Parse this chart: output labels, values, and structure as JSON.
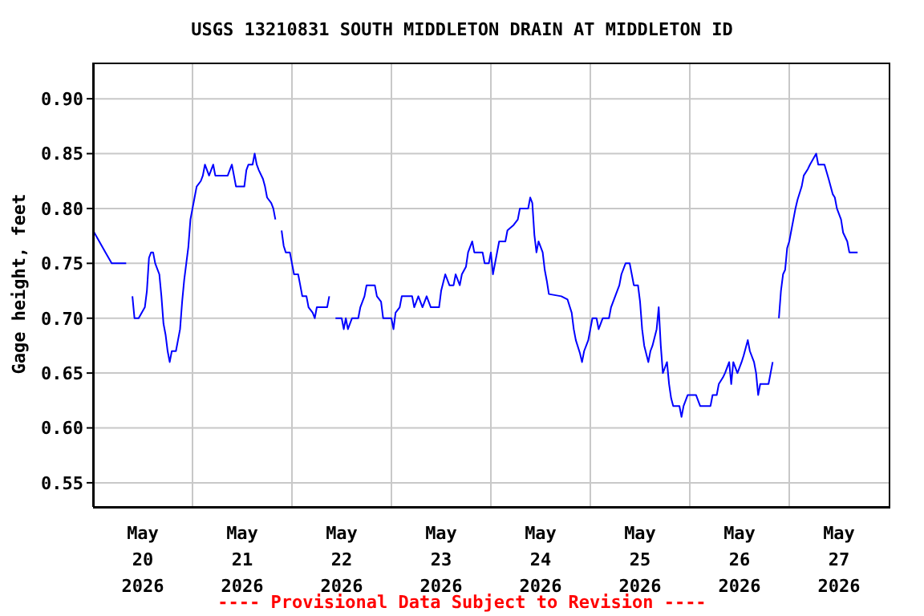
{
  "chart_data": {
    "type": "line",
    "title": "USGS 13210831 SOUTH MIDDLETON DRAIN AT MIDDLETON ID",
    "ylabel": "Gage height, feet",
    "annotations": [
      "---- Provisional Data Subject to Revision ----"
    ],
    "xlim": [
      "2026-05-20T00:00",
      "2026-05-28T00:00"
    ],
    "xticks": [
      {
        "value": "2026-05-20T12:00",
        "label": "May\n20\n2026"
      },
      {
        "value": "2026-05-21T00:00",
        "label": null
      },
      {
        "value": "2026-05-21T12:00",
        "label": "May\n21\n2026"
      },
      {
        "value": "2026-05-22T00:00",
        "label": null
      },
      {
        "value": "2026-05-22T12:00",
        "label": "May\n22\n2026"
      },
      {
        "value": "2026-05-23T00:00",
        "label": null
      },
      {
        "value": "2026-05-23T12:00",
        "label": "May\n23\n2026"
      },
      {
        "value": "2026-05-24T00:00",
        "label": null
      },
      {
        "value": "2026-05-24T12:00",
        "label": "May\n24\n2026"
      },
      {
        "value": "2026-05-25T00:00",
        "label": null
      },
      {
        "value": "2026-05-25T12:00",
        "label": "May\n25\n2026"
      },
      {
        "value": "2026-05-26T00:00",
        "label": null
      },
      {
        "value": "2026-05-26T12:00",
        "label": "May\n26\n2026"
      },
      {
        "value": "2026-05-27T00:00",
        "label": null
      },
      {
        "value": "2026-05-27T12:00",
        "label": "May\n27\n2026"
      }
    ],
    "ylim": [
      0.528,
      0.933
    ],
    "yticks": [
      {
        "value": 0.55,
        "label": "0.55"
      },
      {
        "value": 0.6,
        "label": "0.60"
      },
      {
        "value": 0.65,
        "label": "0.65"
      },
      {
        "value": 0.7,
        "label": "0.70"
      },
      {
        "value": 0.75,
        "label": "0.75"
      },
      {
        "value": 0.8,
        "label": "0.80"
      },
      {
        "value": 0.85,
        "label": "0.85"
      },
      {
        "value": 0.9,
        "label": "0.90"
      }
    ],
    "grid": true,
    "marker": "none",
    "line_style": "solid",
    "series": [
      {
        "color": "#0000ff",
        "x": [
          "2026-05-20T00:00",
          "2026-05-20T01:30",
          "2026-05-20T03:00",
          "2026-05-20T04:30",
          "2026-05-20T08:00",
          "2026-05-20T09:00",
          "2026-05-20T09:30",
          "2026-05-20T10:00",
          "2026-05-20T11:00",
          "2026-05-20T12:30",
          "2026-05-20T13:00",
          "2026-05-20T13:30",
          "2026-05-20T14:00",
          "2026-05-20T14:30",
          "2026-05-20T15:00",
          "2026-05-20T16:00",
          "2026-05-20T16:30",
          "2026-05-20T17:00",
          "2026-05-20T17:30",
          "2026-05-20T18:00",
          "2026-05-20T18:30",
          "2026-05-20T19:00",
          "2026-05-20T20:00",
          "2026-05-20T20:30",
          "2026-05-20T21:00",
          "2026-05-20T21:30",
          "2026-05-20T22:00",
          "2026-05-20T22:30",
          "2026-05-20T23:00",
          "2026-05-20T23:30",
          "2026-05-21T00:00",
          "2026-05-21T00:30",
          "2026-05-21T01:00",
          "2026-05-21T02:00",
          "2026-05-21T02:30",
          "2026-05-21T03:00",
          "2026-05-21T04:00",
          "2026-05-21T05:00",
          "2026-05-21T05:30",
          "2026-05-21T08:30",
          "2026-05-21T09:30",
          "2026-05-21T10:00",
          "2026-05-21T10:30",
          "2026-05-21T12:30",
          "2026-05-21T13:00",
          "2026-05-21T13:30",
          "2026-05-21T14:30",
          "2026-05-21T15:00",
          "2026-05-21T15:30",
          "2026-05-21T16:00",
          "2026-05-21T17:00",
          "2026-05-21T17:30",
          "2026-05-21T18:00",
          "2026-05-21T19:00",
          "2026-05-21T19:30",
          "2026-05-21T20:00",
          "2026-05-21T21:00",
          "2026-05-21T21:30",
          "2026-05-21T22:00",
          "2026-05-21T22:30",
          "2026-05-21T23:30",
          "2026-05-22T00:00",
          "2026-05-22T00:30",
          "2026-05-22T01:30",
          "2026-05-22T02:00",
          "2026-05-22T02:30",
          "2026-05-22T03:30",
          "2026-05-22T04:00",
          "2026-05-22T05:00",
          "2026-05-22T05:30",
          "2026-05-22T06:00",
          "2026-05-22T08:30",
          "2026-05-22T09:00",
          "2026-05-22T10:00",
          "2026-05-22T10:30",
          "2026-05-22T12:00",
          "2026-05-22T12:30",
          "2026-05-22T13:00",
          "2026-05-22T13:30",
          "2026-05-22T14:30",
          "2026-05-22T16:00",
          "2026-05-22T16:30",
          "2026-05-22T17:30",
          "2026-05-22T18:00",
          "2026-05-22T20:00",
          "2026-05-22T20:30",
          "2026-05-22T21:30",
          "2026-05-22T22:00",
          "2026-05-23T00:00",
          "2026-05-23T00:30",
          "2026-05-23T01:00",
          "2026-05-23T02:00",
          "2026-05-23T02:30",
          "2026-05-23T05:00",
          "2026-05-23T05:30",
          "2026-05-23T06:30",
          "2026-05-23T07:30",
          "2026-05-23T08:30",
          "2026-05-23T09:30",
          "2026-05-23T11:30",
          "2026-05-23T12:00",
          "2026-05-23T13:00",
          "2026-05-23T14:00",
          "2026-05-23T15:00",
          "2026-05-23T15:30",
          "2026-05-23T16:30",
          "2026-05-23T17:00",
          "2026-05-23T18:00",
          "2026-05-23T18:30",
          "2026-05-23T19:30",
          "2026-05-23T20:00",
          "2026-05-23T22:00",
          "2026-05-23T22:30",
          "2026-05-23T23:30",
          "2026-05-24T00:00",
          "2026-05-24T00:30",
          "2026-05-24T01:00",
          "2026-05-24T01:30",
          "2026-05-24T02:00",
          "2026-05-24T03:30",
          "2026-05-24T04:00",
          "2026-05-24T05:30",
          "2026-05-24T06:30",
          "2026-05-24T07:00",
          "2026-05-24T09:00",
          "2026-05-24T09:30",
          "2026-05-24T10:00",
          "2026-05-24T10:30",
          "2026-05-24T11:00",
          "2026-05-24T11:30",
          "2026-05-24T12:30",
          "2026-05-24T13:00",
          "2026-05-24T13:30",
          "2026-05-24T14:00",
          "2026-05-24T17:00",
          "2026-05-24T18:30",
          "2026-05-24T19:30",
          "2026-05-24T20:00",
          "2026-05-24T20:30",
          "2026-05-24T21:30",
          "2026-05-24T22:00",
          "2026-05-24T22:30",
          "2026-05-24T23:30",
          "2026-05-25T00:00",
          "2026-05-25T00:30",
          "2026-05-25T01:30",
          "2026-05-25T02:00",
          "2026-05-25T03:00",
          "2026-05-25T04:30",
          "2026-05-25T05:00",
          "2026-05-25T06:00",
          "2026-05-25T07:00",
          "2026-05-25T07:30",
          "2026-05-25T08:30",
          "2026-05-25T09:30",
          "2026-05-25T10:00",
          "2026-05-25T10:30",
          "2026-05-25T11:30",
          "2026-05-25T12:00",
          "2026-05-25T12:30",
          "2026-05-25T13:00",
          "2026-05-25T14:00",
          "2026-05-25T14:30",
          "2026-05-25T15:00",
          "2026-05-25T16:00",
          "2026-05-25T16:30",
          "2026-05-25T17:00",
          "2026-05-25T17:30",
          "2026-05-25T18:30",
          "2026-05-25T19:00",
          "2026-05-25T19:30",
          "2026-05-25T20:00",
          "2026-05-25T21:30",
          "2026-05-25T22:00",
          "2026-05-25T22:30",
          "2026-05-25T23:30",
          "2026-05-26T01:30",
          "2026-05-26T02:30",
          "2026-05-26T05:00",
          "2026-05-26T05:30",
          "2026-05-26T06:30",
          "2026-05-26T07:00",
          "2026-05-26T08:00",
          "2026-05-26T08:30",
          "2026-05-26T09:30",
          "2026-05-26T10:00",
          "2026-05-26T10:30",
          "2026-05-26T11:30",
          "2026-05-26T12:30",
          "2026-05-26T13:00",
          "2026-05-26T14:00",
          "2026-05-26T14:30",
          "2026-05-26T15:30",
          "2026-05-26T16:00",
          "2026-05-26T16:30",
          "2026-05-26T17:00",
          "2026-05-26T19:00",
          "2026-05-26T20:00",
          "2026-05-26T21:00",
          "2026-05-26T21:30",
          "2026-05-26T22:00",
          "2026-05-26T22:30",
          "2026-05-26T23:00",
          "2026-05-26T23:30",
          "2026-05-27T00:00",
          "2026-05-27T01:00",
          "2026-05-27T01:30",
          "2026-05-27T02:00",
          "2026-05-27T03:00",
          "2026-05-27T03:30",
          "2026-05-27T04:30",
          "2026-05-27T05:00",
          "2026-05-27T06:30",
          "2026-05-27T07:00",
          "2026-05-27T08:30",
          "2026-05-27T09:30",
          "2026-05-27T10:30",
          "2026-05-27T11:00",
          "2026-05-27T11:30",
          "2026-05-27T12:30",
          "2026-05-27T13:00",
          "2026-05-27T14:00",
          "2026-05-27T14:30",
          "2026-05-27T16:30"
        ],
        "values": [
          0.78,
          0.77,
          0.76,
          0.75,
          0.75,
          null,
          0.72,
          0.7,
          0.7,
          0.71,
          0.725,
          0.755,
          0.76,
          0.76,
          0.75,
          0.74,
          0.72,
          0.695,
          0.685,
          0.67,
          0.66,
          0.67,
          0.67,
          0.68,
          0.69,
          0.715,
          0.735,
          0.75,
          0.765,
          0.79,
          0.8,
          0.81,
          0.82,
          0.825,
          0.83,
          0.84,
          0.83,
          0.84,
          0.83,
          0.83,
          0.84,
          0.83,
          0.82,
          0.82,
          0.835,
          0.84,
          0.84,
          0.85,
          0.84,
          0.835,
          0.827,
          0.82,
          0.81,
          0.805,
          0.8,
          0.79,
          null,
          0.78,
          0.766,
          0.76,
          0.76,
          0.75,
          0.74,
          0.74,
          0.73,
          0.72,
          0.72,
          0.71,
          0.705,
          0.7,
          0.71,
          0.71,
          0.72,
          null,
          0.7,
          0.7,
          0.69,
          0.7,
          0.69,
          0.7,
          0.7,
          0.71,
          0.72,
          0.73,
          0.73,
          0.72,
          0.715,
          0.7,
          0.7,
          0.69,
          0.705,
          0.71,
          0.72,
          0.72,
          0.71,
          0.72,
          0.71,
          0.72,
          0.71,
          0.71,
          0.725,
          0.74,
          0.73,
          0.73,
          0.74,
          0.73,
          0.74,
          0.747,
          0.76,
          0.77,
          0.76,
          0.76,
          0.75,
          0.75,
          0.76,
          0.74,
          0.75,
          0.76,
          0.77,
          0.77,
          0.78,
          0.785,
          0.79,
          0.8,
          0.8,
          0.81,
          0.805,
          0.776,
          0.76,
          0.77,
          0.76,
          0.744,
          0.734,
          0.722,
          0.72,
          0.717,
          0.705,
          0.69,
          0.68,
          0.668,
          0.66,
          0.67,
          0.68,
          0.69,
          0.7,
          0.7,
          0.69,
          0.7,
          0.7,
          0.71,
          0.72,
          0.73,
          0.74,
          0.75,
          0.75,
          0.74,
          0.73,
          0.73,
          0.715,
          0.69,
          0.675,
          0.66,
          0.67,
          0.675,
          0.69,
          0.71,
          0.675,
          0.65,
          0.66,
          0.64,
          0.627,
          0.62,
          0.62,
          0.61,
          0.62,
          0.63,
          0.63,
          0.62,
          0.62,
          0.63,
          0.63,
          0.64,
          0.646,
          0.65,
          0.66,
          0.64,
          0.66,
          0.65,
          0.66,
          0.666,
          0.68,
          0.67,
          0.66,
          0.65,
          0.63,
          0.64,
          0.64,
          0.66,
          null,
          0.7,
          0.725,
          0.74,
          0.744,
          0.764,
          0.77,
          0.79,
          0.8,
          0.808,
          0.82,
          0.83,
          0.836,
          0.84,
          0.85,
          0.84,
          0.84,
          0.827,
          0.813,
          0.81,
          0.8,
          0.79,
          0.778,
          0.77,
          0.76,
          0.76
        ]
      }
    ]
  }
}
